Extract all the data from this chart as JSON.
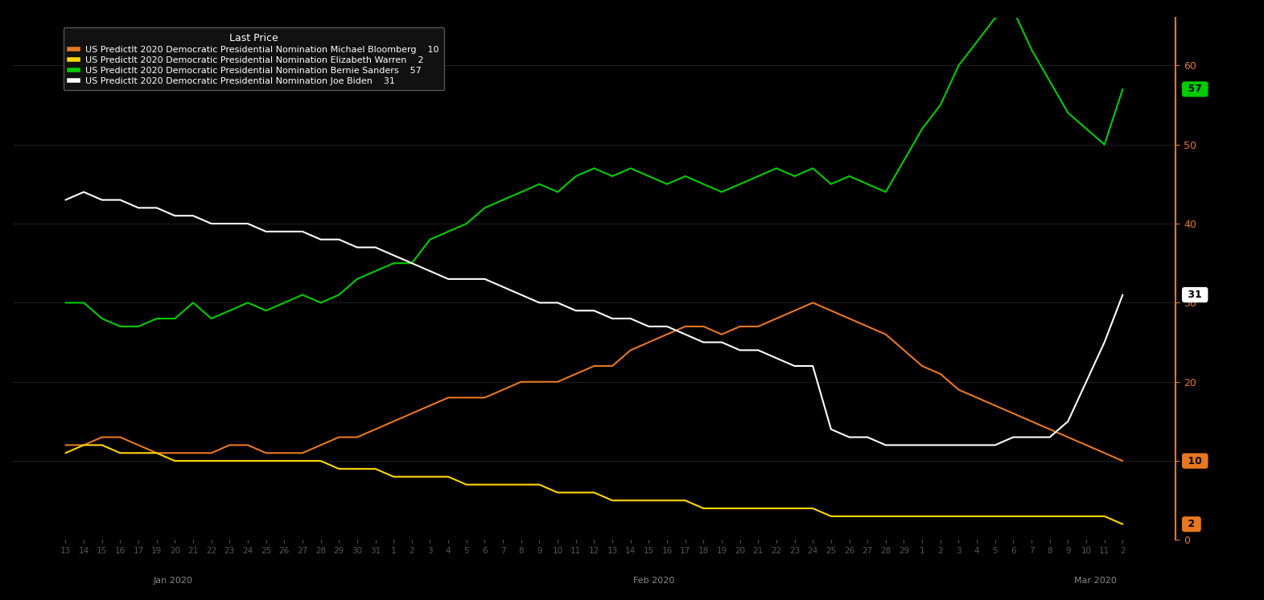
{
  "background_color": "#000000",
  "legend_title": "Last Price",
  "series": [
    {
      "label": "US PredictIt 2020 Democratic Presidential Nomination Michael Bloomberg",
      "color": "#E87722",
      "last_price": 10,
      "last_price_bg": "#E87722",
      "last_price_fg": "#000000",
      "values": [
        12,
        12,
        13,
        13,
        12,
        11,
        11,
        11,
        11,
        12,
        12,
        11,
        11,
        11,
        12,
        13,
        13,
        14,
        15,
        16,
        17,
        18,
        18,
        18,
        19,
        20,
        20,
        20,
        21,
        22,
        22,
        24,
        25,
        26,
        27,
        27,
        26,
        27,
        27,
        28,
        29,
        30,
        29,
        28,
        27,
        26,
        24,
        22,
        21,
        19,
        18,
        17,
        16,
        15,
        14,
        13,
        12,
        11,
        10
      ]
    },
    {
      "label": "US PredictIt 2020 Democratic Presidential Nomination Elizabeth Warren",
      "color": "#FFD700",
      "last_price": 2,
      "last_price_bg": "#E87722",
      "last_price_fg": "#000000",
      "values": [
        11,
        12,
        12,
        11,
        11,
        11,
        10,
        10,
        10,
        10,
        10,
        10,
        10,
        10,
        10,
        9,
        9,
        9,
        8,
        8,
        8,
        8,
        7,
        7,
        7,
        7,
        7,
        6,
        6,
        6,
        5,
        5,
        5,
        5,
        5,
        4,
        4,
        4,
        4,
        4,
        4,
        4,
        3,
        3,
        3,
        3,
        3,
        3,
        3,
        3,
        3,
        3,
        3,
        3,
        3,
        3,
        3,
        3,
        2
      ]
    },
    {
      "label": "US PredictIt 2020 Democratic Presidential Nomination Bernie Sanders",
      "color": "#00CC00",
      "last_price": 57,
      "last_price_bg": "#00CC00",
      "last_price_fg": "#000000",
      "values": [
        30,
        30,
        28,
        27,
        27,
        28,
        28,
        30,
        28,
        29,
        30,
        29,
        30,
        31,
        30,
        31,
        33,
        34,
        35,
        35,
        38,
        39,
        40,
        42,
        43,
        44,
        45,
        44,
        46,
        47,
        46,
        47,
        46,
        45,
        46,
        45,
        44,
        45,
        46,
        47,
        46,
        47,
        45,
        46,
        45,
        44,
        48,
        52,
        55,
        60,
        63,
        66,
        67,
        62,
        58,
        54,
        52,
        50,
        57
      ]
    },
    {
      "label": "US PredictIt 2020 Democratic Presidential Nomination Joe Biden",
      "color": "#FFFFFF",
      "last_price": 31,
      "last_price_bg": "#FFFFFF",
      "last_price_fg": "#000000",
      "values": [
        43,
        44,
        43,
        43,
        42,
        42,
        41,
        41,
        40,
        40,
        40,
        39,
        39,
        39,
        38,
        38,
        37,
        37,
        36,
        35,
        34,
        33,
        33,
        33,
        32,
        31,
        30,
        30,
        29,
        29,
        28,
        28,
        27,
        27,
        26,
        25,
        25,
        24,
        24,
        23,
        22,
        22,
        14,
        13,
        13,
        12,
        12,
        12,
        12,
        12,
        12,
        12,
        13,
        13,
        13,
        15,
        20,
        25,
        31
      ]
    }
  ],
  "x_tick_labels": [
    "13",
    "14",
    "15",
    "16",
    "17",
    "19",
    "20",
    "21",
    "22",
    "23",
    "24",
    "25",
    "26",
    "27",
    "28",
    "29",
    "30",
    "31",
    "1",
    "2",
    "3",
    "4",
    "5",
    "6",
    "7",
    "8",
    "9",
    "10",
    "11",
    "12",
    "13",
    "14",
    "15",
    "16",
    "17",
    "18",
    "19",
    "20",
    "21",
    "22",
    "23",
    "24",
    "25",
    "26",
    "27",
    "28",
    "29",
    "1",
    "2",
    "3",
    "4",
    "5",
    "6",
    "7",
    "8",
    "9",
    "10",
    "11",
    "2"
  ],
  "month_labels": [
    {
      "label": "Jan 2020",
      "idx": 8
    },
    {
      "label": "Feb 2020",
      "idx": 32
    },
    {
      "label": "Mar 2020",
      "idx": 54
    }
  ],
  "ylim": [
    0,
    66
  ],
  "yticks": [
    0,
    10,
    20,
    30,
    40,
    50,
    60
  ],
  "spine_color": "#E87722",
  "tick_color": "#E87722",
  "x_tick_color": "#888888",
  "month_label_color": "#888888",
  "legend_bg": "#111111",
  "legend_fg": "#ffffff",
  "legend_edge": "#555555"
}
